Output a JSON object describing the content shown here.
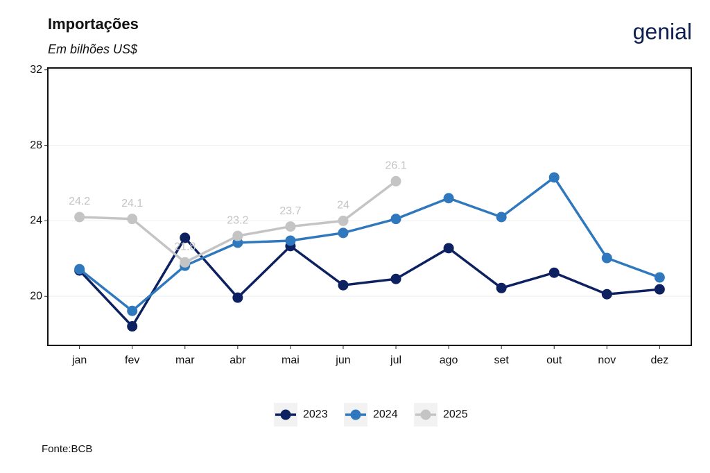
{
  "chart_data": {
    "type": "line",
    "title": "Importações",
    "subtitle": "Em bilhões US$",
    "source": "Fonte:BCB",
    "logo": "genial",
    "categories": [
      "jan",
      "fev",
      "mar",
      "abr",
      "mai",
      "jun",
      "jul",
      "ago",
      "set",
      "out",
      "nov",
      "dez"
    ],
    "series": [
      {
        "name": "2023",
        "color": "#0d2161",
        "values": [
          21.37,
          18.41,
          23.1,
          19.93,
          22.66,
          20.59,
          20.92,
          22.55,
          20.44,
          21.25,
          20.11,
          20.37
        ]
      },
      {
        "name": "2024",
        "color": "#2f78bd",
        "values": [
          21.44,
          19.23,
          21.62,
          22.84,
          22.95,
          23.36,
          24.1,
          25.2,
          24.2,
          26.3,
          22.03,
          21.0
        ]
      },
      {
        "name": "2025",
        "color": "#c4c4c4",
        "values": [
          24.2,
          24.1,
          21.8,
          23.2,
          23.7,
          24,
          26.1,
          null,
          null,
          null,
          null,
          null
        ],
        "labels": true
      }
    ],
    "ylim": [
      17.4,
      32.1
    ],
    "yticks": [
      20,
      24,
      28,
      32
    ],
    "grid": true,
    "legend": "bottom"
  }
}
